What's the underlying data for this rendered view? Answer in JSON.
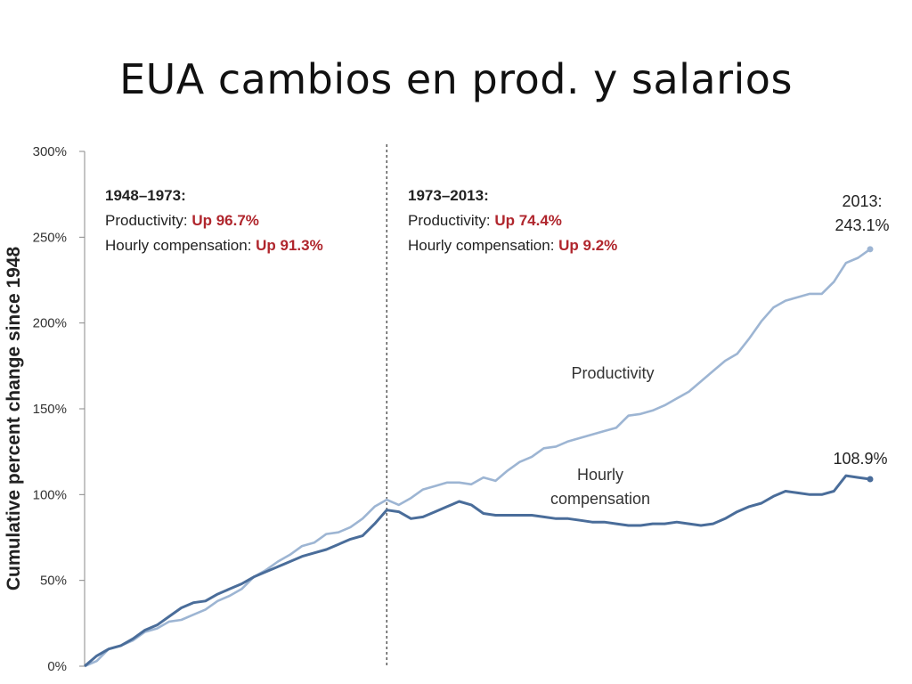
{
  "slide": {
    "title": "EUA cambios en prod. y salarios"
  },
  "chart_data": {
    "type": "line",
    "title": "",
    "ylabel": "Cumulative percent change since 1948",
    "xlabel": "",
    "xlim": [
      1948,
      2013
    ],
    "ylim": [
      0,
      300
    ],
    "yticks": [
      "0%",
      "50%",
      "100%",
      "150%",
      "200%",
      "250%",
      "300%"
    ],
    "grid": false,
    "divider_year": 1973,
    "annotations": {
      "left": {
        "period": "1948–1973:",
        "productivity_label": "Productivity: ",
        "productivity_value": "Up 96.7%",
        "compensation_label": "Hourly compensation: ",
        "compensation_value": "Up 91.3%"
      },
      "right": {
        "period": "1973–2013:",
        "productivity_label": "Productivity: ",
        "productivity_value": "Up 74.4%",
        "compensation_label": "Hourly compensation: ",
        "compensation_value": "Up 9.2%"
      },
      "productivity_end_line1": "2013:",
      "productivity_end_line2": "243.1%",
      "compensation_end": "108.9%"
    },
    "series": [
      {
        "name": "Productivity",
        "color": "#9db5d3",
        "x": [
          1948,
          1949,
          1950,
          1951,
          1952,
          1953,
          1954,
          1955,
          1956,
          1957,
          1958,
          1959,
          1960,
          1961,
          1962,
          1963,
          1964,
          1965,
          1966,
          1967,
          1968,
          1969,
          1970,
          1971,
          1972,
          1973,
          1974,
          1975,
          1976,
          1977,
          1978,
          1979,
          1980,
          1981,
          1982,
          1983,
          1984,
          1985,
          1986,
          1987,
          1988,
          1989,
          1990,
          1991,
          1992,
          1993,
          1994,
          1995,
          1996,
          1997,
          1998,
          1999,
          2000,
          2001,
          2002,
          2003,
          2004,
          2005,
          2006,
          2007,
          2008,
          2009,
          2010,
          2011,
          2012,
          2013
        ],
        "values": [
          0,
          3,
          10,
          12,
          15,
          20,
          22,
          26,
          27,
          30,
          33,
          38,
          41,
          45,
          52,
          56,
          61,
          65,
          70,
          72,
          77,
          78,
          81,
          86,
          93,
          97,
          94,
          98,
          103,
          105,
          107,
          107,
          106,
          110,
          108,
          114,
          119,
          122,
          127,
          128,
          131,
          133,
          135,
          137,
          139,
          146,
          147,
          149,
          152,
          156,
          160,
          166,
          172,
          178,
          182,
          191,
          201,
          209,
          213,
          215,
          217,
          217,
          224,
          235,
          238,
          243
        ]
      },
      {
        "name": "Hourly compensation",
        "color": "#4a6d9a",
        "x": [
          1948,
          1949,
          1950,
          1951,
          1952,
          1953,
          1954,
          1955,
          1956,
          1957,
          1958,
          1959,
          1960,
          1961,
          1962,
          1963,
          1964,
          1965,
          1966,
          1967,
          1968,
          1969,
          1970,
          1971,
          1972,
          1973,
          1974,
          1975,
          1976,
          1977,
          1978,
          1979,
          1980,
          1981,
          1982,
          1983,
          1984,
          1985,
          1986,
          1987,
          1988,
          1989,
          1990,
          1991,
          1992,
          1993,
          1994,
          1995,
          1996,
          1997,
          1998,
          1999,
          2000,
          2001,
          2002,
          2003,
          2004,
          2005,
          2006,
          2007,
          2008,
          2009,
          2010,
          2011,
          2012,
          2013
        ],
        "values": [
          0,
          6,
          10,
          12,
          16,
          21,
          24,
          29,
          34,
          37,
          38,
          42,
          45,
          48,
          52,
          55,
          58,
          61,
          64,
          66,
          68,
          71,
          74,
          76,
          83,
          91,
          90,
          86,
          87,
          90,
          93,
          96,
          94,
          89,
          88,
          88,
          88,
          88,
          87,
          86,
          86,
          85,
          84,
          84,
          83,
          82,
          82,
          83,
          83,
          84,
          83,
          82,
          83,
          86,
          90,
          93,
          95,
          99,
          102,
          101,
          100,
          100,
          102,
          111,
          110,
          109
        ]
      }
    ]
  }
}
